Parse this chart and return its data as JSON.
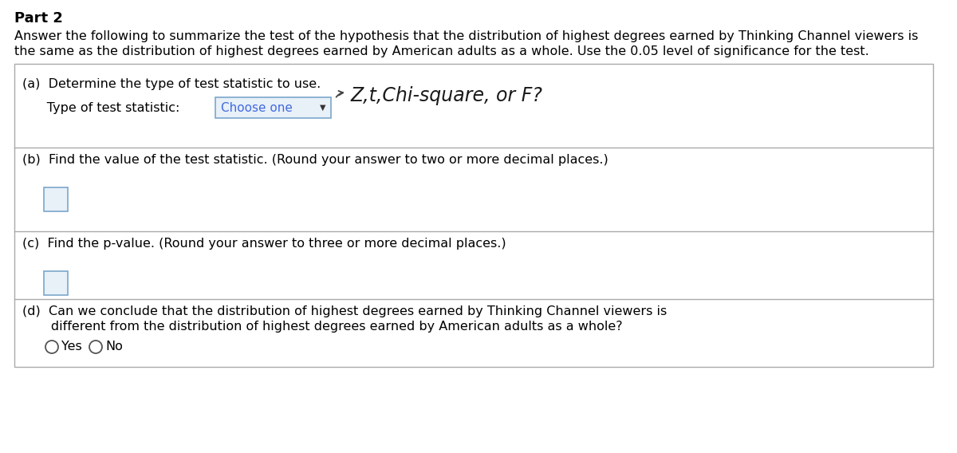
{
  "title": "Part 2",
  "intro_line1": "Answer the following to summarize the test of the hypothesis that the distribution of highest degrees earned by Thinking Channel viewers is",
  "intro_line2": "the same as the distribution of highest degrees earned by American adults as a whole. Use the 0.05 level of significance for the test.",
  "section_a_label": "(a)  Determine the type of test statistic to use.",
  "section_a_sub": "      Type of test statistic:",
  "choose_one_text": "Choose one",
  "handwritten_text": "Z,t,Chi-square, or F?",
  "section_b_label": "(b)  Find the value of the test statistic. (Round your answer to two or more decimal places.)",
  "section_c_label": "(c)  Find the p-value. (Round your answer to three or more decimal places.)",
  "section_d_line1": "(d)  Can we conclude that the distribution of highest degrees earned by Thinking Channel viewers is",
  "section_d_line2": "       different from the distribution of highest degrees earned by American adults as a whole?",
  "yes_label": "Yes",
  "no_label": "No",
  "bg_color": "#ffffff",
  "text_color": "#000000",
  "blue_text_color": "#4169e1",
  "input_box_border": "#7ba7cc",
  "input_box_fill": "#e8f0f8",
  "border_color": "#aaaaaa",
  "font_size_main": 11.5,
  "font_size_title": 13.0
}
